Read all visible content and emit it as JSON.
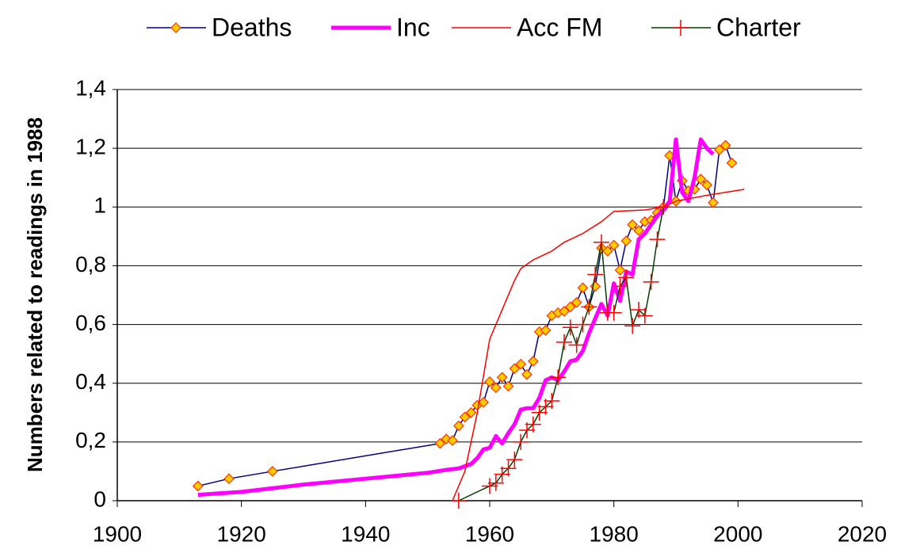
{
  "chart_data": {
    "type": "line",
    "y_label": "Numbers related to readings in 1988",
    "xlim": [
      1900,
      2020
    ],
    "xticks": [
      1900,
      1920,
      1940,
      1960,
      1980,
      2000,
      2020
    ],
    "ylim": [
      0,
      1.4
    ],
    "yticks": [
      0,
      {
        "value": 0.2,
        "label": "0,2"
      },
      {
        "value": 0.4,
        "label": "0,4"
      },
      {
        "value": 0.6,
        "label": "0,6"
      },
      {
        "value": 0.8,
        "label": "0,8"
      },
      1,
      {
        "value": 1.2,
        "label": "1,2"
      },
      {
        "value": 1.4,
        "label": "1,4"
      }
    ],
    "grid": true,
    "legend": "top",
    "series": [
      {
        "name": "Deaths",
        "color": "#000080",
        "marker": "diamond",
        "marker_color": "#ffcc00",
        "x": [
          1913,
          1918,
          1925,
          1952,
          1953,
          1954,
          1955,
          1956,
          1957,
          1958,
          1959,
          1960,
          1961,
          1962,
          1963,
          1964,
          1965,
          1966,
          1967,
          1968,
          1969,
          1970,
          1971,
          1972,
          1973,
          1974,
          1975,
          1976,
          1977,
          1978,
          1979,
          1980,
          1981,
          1982,
          1983,
          1984,
          1985,
          1986,
          1987,
          1988,
          1989,
          1990,
          1991,
          1992,
          1993,
          1994,
          1995,
          1996,
          1997,
          1998,
          1999
        ],
        "values": [
          0.05,
          0.075,
          0.1,
          0.195,
          0.21,
          0.205,
          0.255,
          0.285,
          0.3,
          0.325,
          0.335,
          0.405,
          0.385,
          0.42,
          0.39,
          0.45,
          0.465,
          0.43,
          0.475,
          0.575,
          0.58,
          0.63,
          0.64,
          0.645,
          0.66,
          0.675,
          0.725,
          0.66,
          0.73,
          0.86,
          0.85,
          0.87,
          0.785,
          0.885,
          0.94,
          0.92,
          0.95,
          0.955,
          0.98,
          1.0,
          1.175,
          1.02,
          1.09,
          1.055,
          1.06,
          1.095,
          1.075,
          1.015,
          1.195,
          1.21,
          1.15
        ]
      },
      {
        "name": "Inc",
        "color": "#ff00ff",
        "width": 5,
        "x": [
          1913,
          1920,
          1930,
          1940,
          1950,
          1953,
          1955,
          1957,
          1958,
          1959,
          1960,
          1961,
          1962,
          1963,
          1964,
          1965,
          1966,
          1967,
          1968,
          1969,
          1970,
          1971,
          1972,
          1973,
          1974,
          1975,
          1976,
          1977,
          1978,
          1979,
          1980,
          1981,
          1982,
          1983,
          1984,
          1985,
          1986,
          1987,
          1988,
          1989,
          1990,
          1991,
          1992,
          1993,
          1994,
          1995,
          1996
        ],
        "values": [
          0.02,
          0.03,
          0.055,
          0.075,
          0.095,
          0.105,
          0.11,
          0.125,
          0.145,
          0.175,
          0.18,
          0.22,
          0.195,
          0.23,
          0.26,
          0.31,
          0.315,
          0.315,
          0.35,
          0.41,
          0.42,
          0.41,
          0.44,
          0.475,
          0.48,
          0.51,
          0.57,
          0.62,
          0.67,
          0.63,
          0.74,
          0.68,
          0.78,
          0.77,
          0.89,
          0.91,
          0.94,
          0.97,
          0.99,
          1.02,
          1.23,
          1.05,
          1.02,
          1.1,
          1.23,
          1.2,
          1.18
        ]
      },
      {
        "name": "Acc FM",
        "color": "#ff0000",
        "width": 1.5,
        "x": [
          1954,
          1956,
          1958,
          1960,
          1962,
          1964,
          1965,
          1967,
          1970,
          1972,
          1975,
          1978,
          1980,
          1985,
          1988,
          1990,
          1995,
          1998,
          2001
        ],
        "values": [
          0.0,
          0.1,
          0.3,
          0.55,
          0.65,
          0.75,
          0.79,
          0.82,
          0.85,
          0.88,
          0.91,
          0.95,
          0.985,
          0.99,
          1.0,
          1.02,
          1.04,
          1.05,
          1.06
        ]
      },
      {
        "name": "Charter",
        "color": "#004000",
        "marker": "cross",
        "marker_color": "#ff0000",
        "x": [
          1955,
          1960,
          1961,
          1962,
          1963,
          1964,
          1965,
          1966,
          1967,
          1968,
          1969,
          1970,
          1971,
          1972,
          1973,
          1974,
          1975,
          1976,
          1977,
          1978,
          1979,
          1980,
          1981,
          1982,
          1983,
          1984,
          1985,
          1986,
          1987,
          1988
        ],
        "values": [
          0.0,
          0.05,
          0.06,
          0.09,
          0.11,
          0.14,
          0.2,
          0.24,
          0.26,
          0.3,
          0.32,
          0.34,
          0.42,
          0.54,
          0.59,
          0.53,
          0.6,
          0.66,
          0.77,
          0.88,
          0.64,
          0.64,
          0.73,
          0.76,
          0.595,
          0.65,
          0.63,
          0.745,
          0.89,
          1.0
        ]
      }
    ]
  }
}
